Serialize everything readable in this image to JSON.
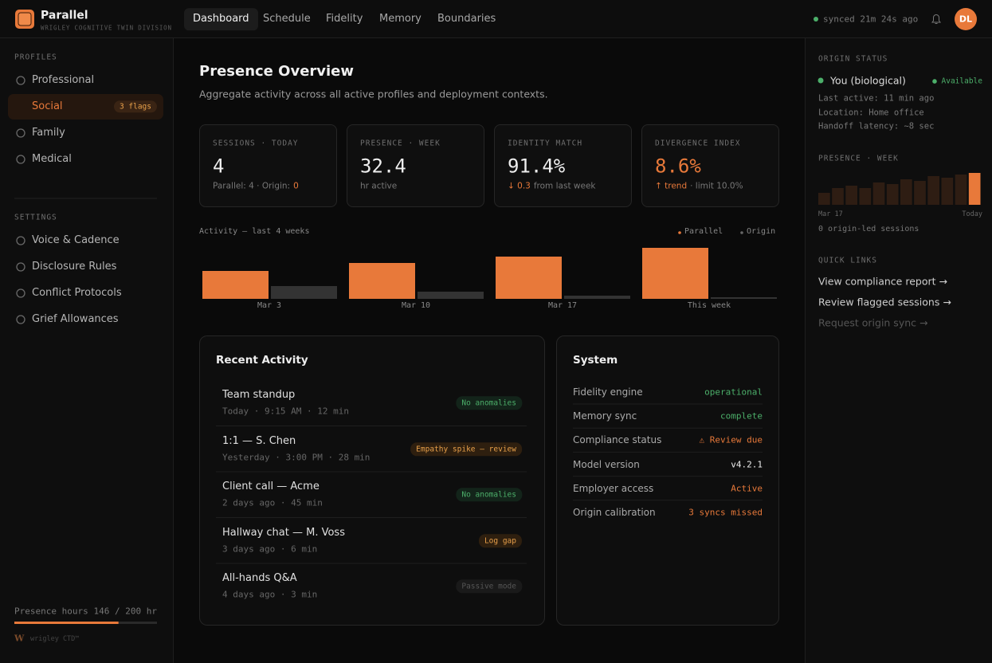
{
  "header": {
    "brand": "Parallel",
    "subtitle": "WRIGLEY COGNITIVE TWIN DIVISION",
    "nav": [
      "Dashboard",
      "Schedule",
      "Fidelity",
      "Memory",
      "Boundaries"
    ],
    "active_nav": "Dashboard",
    "sync": "synced 21m 24s ago",
    "avatar": "DL"
  },
  "sidebar": {
    "profiles_title": "PROFILES",
    "profiles": [
      {
        "label": "Professional"
      },
      {
        "label": "Social",
        "badge": "3 flags",
        "active": true
      },
      {
        "label": "Family"
      },
      {
        "label": "Medical"
      }
    ],
    "settings_title": "SETTINGS",
    "settings": [
      {
        "label": "Voice & Cadence"
      },
      {
        "label": "Disclosure Rules"
      },
      {
        "label": "Conflict Protocols"
      },
      {
        "label": "Grief Allowances"
      }
    ],
    "usage": {
      "label": "Presence hours",
      "value_label": "146 / 200 hr",
      "used": 146,
      "max": 200
    },
    "footer_mark": "W",
    "footer": "wrigley CTD™"
  },
  "main": {
    "title": "Presence Overview",
    "subtitle": "Aggregate activity across all active profiles and deployment contexts.",
    "cards": [
      {
        "label": "SESSIONS · TODAY",
        "value": "4",
        "detail": [
          {
            "text": "Parallel: 4 · Origin:"
          },
          {
            "text": "0",
            "tone": "orange"
          }
        ]
      },
      {
        "label": "PRESENCE · WEEK",
        "value": "32.4",
        "detail": [
          {
            "text": "hr active"
          }
        ]
      },
      {
        "label": "IDENTITY MATCH",
        "value": "91.4%",
        "detail": [
          {
            "text": "↓ 0.3",
            "tone": "orange"
          },
          {
            "text": "from last week"
          }
        ]
      },
      {
        "label": "DIVERGENCE INDEX",
        "value": "8.6%",
        "tone": "orange",
        "detail": [
          {
            "text": "↑ trend",
            "tone": "orange"
          },
          {
            "text": "· limit 10.0%"
          }
        ]
      }
    ],
    "recent": {
      "title": "Recent Activity",
      "items": [
        {
          "title": "Team standup",
          "meta": "Today · 9:15 AM · 12 min",
          "badge": "No anomalies",
          "tone": "green"
        },
        {
          "title": "1:1 — S. Chen",
          "meta": "Yesterday · 3:00 PM · 28 min",
          "badge": "Empathy spike — review",
          "tone": "orange"
        },
        {
          "title": "Client call — Acme",
          "meta": "2 days ago · 45 min",
          "badge": "No anomalies",
          "tone": "green"
        },
        {
          "title": "Hallway chat — M. Voss",
          "meta": "3 days ago · 6 min",
          "badge": "Log gap",
          "tone": "orange"
        },
        {
          "title": "All-hands Q&A",
          "meta": "4 days ago · 3 min",
          "badge": "Passive mode",
          "tone": "muted"
        }
      ]
    },
    "system": {
      "title": "System",
      "rows": [
        {
          "label": "Fidelity engine",
          "value": "operational",
          "tone": "green"
        },
        {
          "label": "Memory sync",
          "value": "complete",
          "tone": "green"
        },
        {
          "label": "Compliance status",
          "value": "⚠ Review due",
          "tone": "orange"
        },
        {
          "label": "Model version",
          "value": "v4.2.1",
          "tone": "white"
        },
        {
          "label": "Employer access",
          "value": "Active",
          "tone": "orange"
        },
        {
          "label": "Origin calibration",
          "value": "3 syncs missed",
          "tone": "orange"
        }
      ]
    }
  },
  "right": {
    "status_title": "ORIGIN STATUS",
    "name": "You (biological)",
    "availability": "● Available",
    "details": [
      "Last active: 11 min ago",
      "Location: Home office",
      "Handoff latency: ~8 sec"
    ],
    "note": "0 origin-led sessions",
    "links_title": "QUICK LINKS",
    "links": [
      {
        "text": "View compliance report →"
      },
      {
        "text": "Review flagged sessions →"
      },
      {
        "text": "Request origin sync →",
        "tone": "muted"
      }
    ]
  },
  "chart_data": [
    {
      "type": "bar",
      "title": "Activity — last 4 weeks",
      "categories": [
        "Mar 3",
        "Mar 10",
        "Mar 17",
        "This week"
      ],
      "series": [
        {
          "name": "Parallel",
          "color": "#e8793a",
          "values": [
            35,
            45,
            53,
            64
          ]
        },
        {
          "name": "Origin",
          "color": "#333333",
          "values": [
            16,
            9,
            4,
            2
          ]
        }
      ]
    },
    {
      "type": "bar",
      "title": "PRESENCE · WEEK",
      "categories": [
        "Mar 17",
        null,
        null,
        null,
        null,
        null,
        null,
        null,
        null,
        null,
        null,
        "Today"
      ],
      "values": [
        15,
        21,
        24,
        21,
        28,
        26,
        32,
        30,
        36,
        34,
        38,
        40
      ],
      "colors": [
        "#2e1d13",
        "#2e1d13",
        "#2e1d13",
        "#2e1d13",
        "#2e1d13",
        "#2e1d13",
        "#2e1d13",
        "#2e1d13",
        "#2e1d13",
        "#2e1d13",
        "#2e1d13",
        "#e8793a"
      ]
    }
  ]
}
